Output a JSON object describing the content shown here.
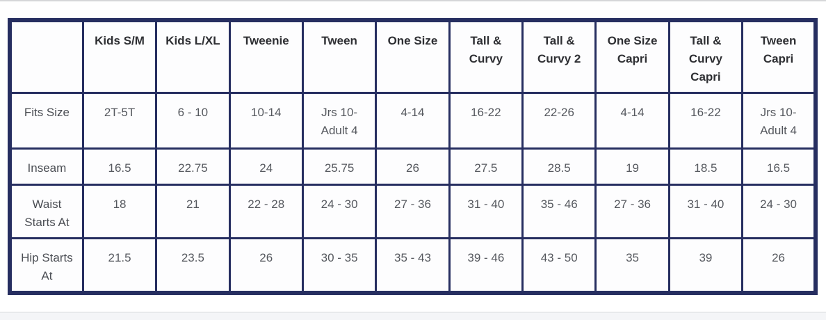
{
  "page": {
    "description": "Size chart table"
  },
  "colors": {
    "table_border": "#262e60",
    "header_text": "#2e2f33",
    "body_text": "#55585e",
    "page_background": "#ffffff",
    "bottom_band": "#f4f5f7",
    "top_divider": "#d6d7d9"
  },
  "table": {
    "columns": [
      "",
      "Kids S/M",
      "Kids L/XL",
      "Tweenie",
      "Tween",
      "One Size",
      "Tall & Curvy",
      "Tall & Curvy 2",
      "One Size Capri",
      "Tall & Curvy Capri",
      "Tween Capri"
    ],
    "rows": [
      {
        "label": "Fits Size",
        "values": [
          "2T-5T",
          "6 - 10",
          "10-14",
          "Jrs 10-Adult 4",
          "4-14",
          "16-22",
          "22-26",
          "4-14",
          "16-22",
          "Jrs 10-Adult 4"
        ]
      },
      {
        "label": "Inseam",
        "values": [
          "16.5",
          "22.75",
          "24",
          "25.75",
          "26",
          "27.5",
          "28.5",
          "19",
          "18.5",
          "16.5"
        ]
      },
      {
        "label": "Waist Starts At",
        "values": [
          "18",
          "21",
          "22 - 28",
          "24 - 30",
          "27 - 36",
          "31 - 40",
          "35 - 46",
          "27 - 36",
          "31 - 40",
          "24 - 30"
        ]
      },
      {
        "label": "Hip Starts At",
        "values": [
          "21.5",
          "23.5",
          "26",
          "30 - 35",
          "35 - 43",
          "39 - 46",
          "43 - 50",
          "35",
          "39",
          "26"
        ]
      }
    ]
  }
}
